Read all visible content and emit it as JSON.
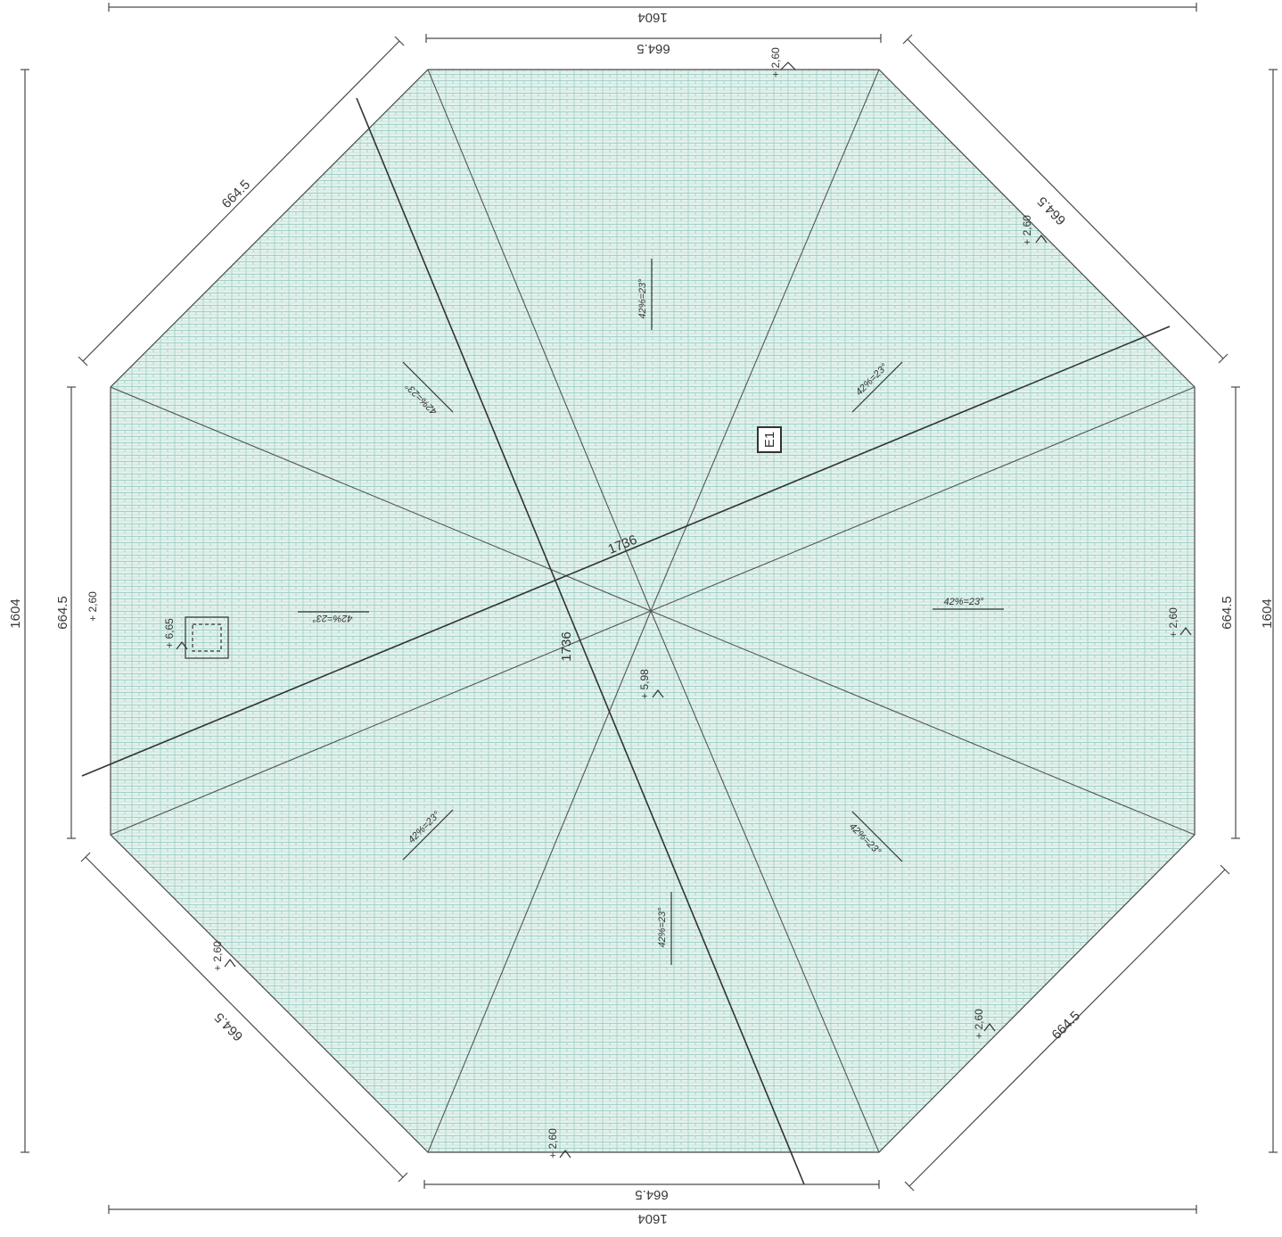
{
  "drawing": {
    "outer_width": "1604",
    "outer_height": "1604",
    "edge_length": "664.5",
    "section_length": "1736",
    "roof_slope": "42%=23°",
    "eave_level": "+ 2,60",
    "ridge_level": "+ 5,98",
    "chimney_level": "+ 6,65",
    "element_tag": "E1",
    "colors": {
      "roof_fill": "#dcefe6",
      "tile_pattern": "#8fc7c0",
      "line": "#4a4a4a"
    }
  }
}
